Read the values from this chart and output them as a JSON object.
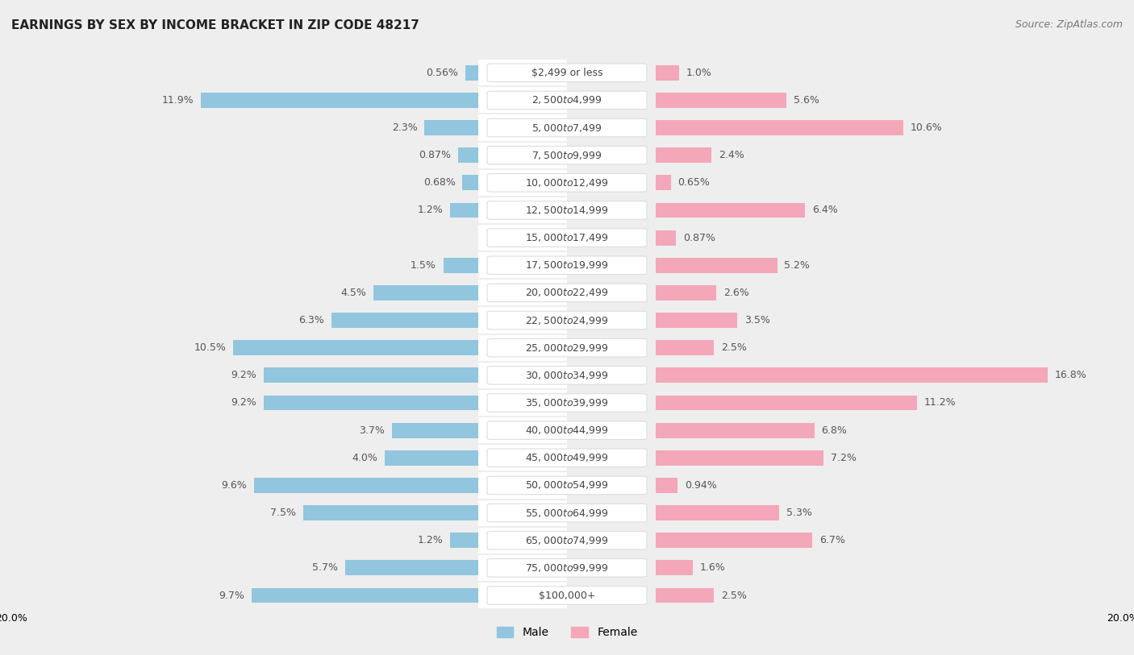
{
  "title": "EARNINGS BY SEX BY INCOME BRACKET IN ZIP CODE 48217",
  "source": "Source: ZipAtlas.com",
  "categories": [
    "$2,499 or less",
    "$2,500 to $4,999",
    "$5,000 to $7,499",
    "$7,500 to $9,999",
    "$10,000 to $12,499",
    "$12,500 to $14,999",
    "$15,000 to $17,499",
    "$17,500 to $19,999",
    "$20,000 to $22,499",
    "$22,500 to $24,999",
    "$25,000 to $29,999",
    "$30,000 to $34,999",
    "$35,000 to $39,999",
    "$40,000 to $44,999",
    "$45,000 to $49,999",
    "$50,000 to $54,999",
    "$55,000 to $64,999",
    "$65,000 to $74,999",
    "$75,000 to $99,999",
    "$100,000+"
  ],
  "male_values": [
    0.56,
    11.9,
    2.3,
    0.87,
    0.68,
    1.2,
    0.0,
    1.5,
    4.5,
    6.3,
    10.5,
    9.2,
    9.2,
    3.7,
    4.0,
    9.6,
    7.5,
    1.2,
    5.7,
    9.7
  ],
  "female_values": [
    1.0,
    5.6,
    10.6,
    2.4,
    0.65,
    6.4,
    0.87,
    5.2,
    2.6,
    3.5,
    2.5,
    16.8,
    11.2,
    6.8,
    7.2,
    0.94,
    5.3,
    6.7,
    1.6,
    2.5
  ],
  "male_color": "#92c5de",
  "female_color": "#f4a7b9",
  "male_label": "Male",
  "female_label": "Female",
  "background_color": "#eeeeee",
  "row_color": "#ffffff",
  "max_val": 20.0,
  "bar_height": 0.55,
  "tick_label_fontsize": 9.0,
  "category_fontsize": 9.0,
  "title_fontsize": 11,
  "source_fontsize": 9,
  "value_label_color": "#555555",
  "category_label_color": "#444444",
  "pill_color": "#ffffff",
  "pill_edge_color": "#dddddd"
}
